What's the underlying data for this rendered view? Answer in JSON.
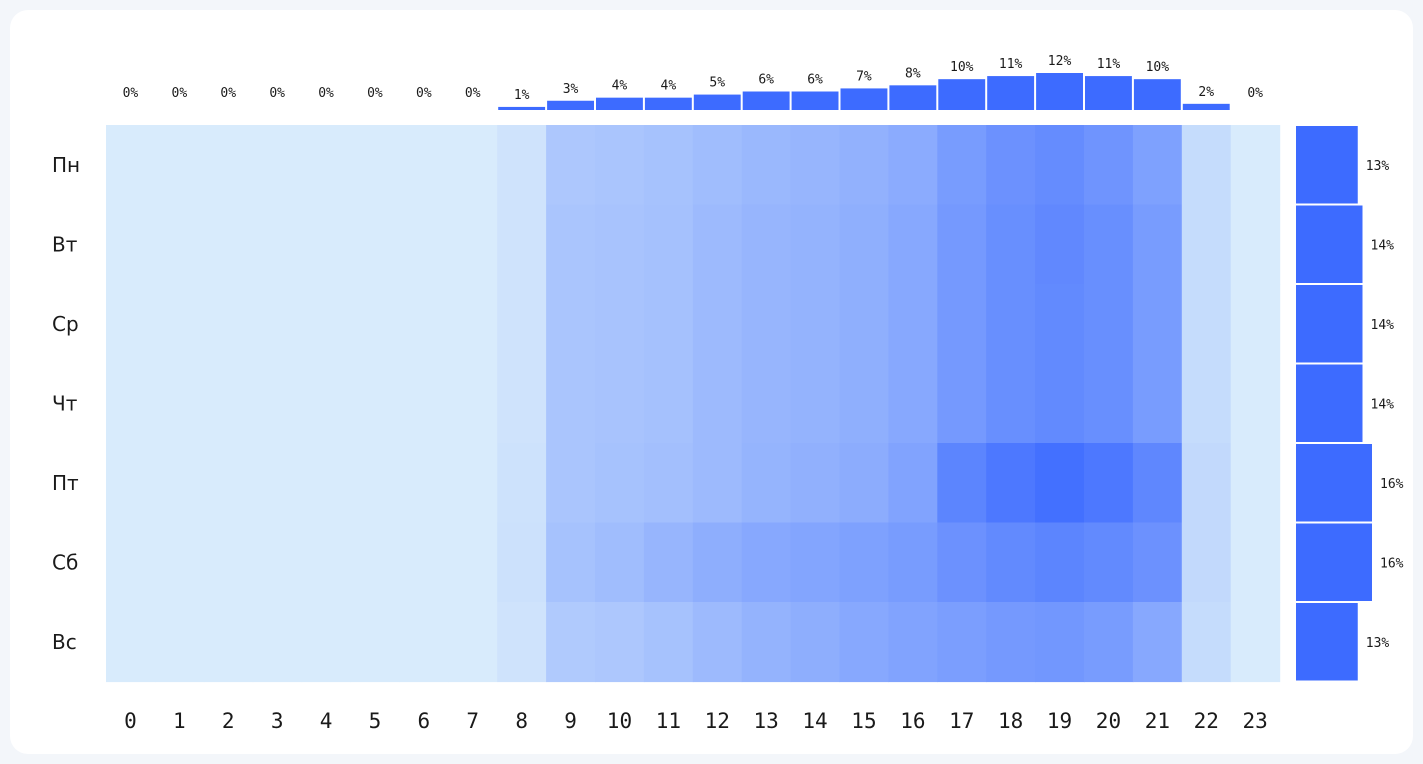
{
  "chart_data": {
    "type": "heatmap",
    "title": "",
    "xlabel": "",
    "ylabel": "",
    "hours": [
      "0",
      "1",
      "2",
      "3",
      "4",
      "5",
      "6",
      "7",
      "8",
      "9",
      "10",
      "11",
      "12",
      "13",
      "14",
      "15",
      "16",
      "17",
      "18",
      "19",
      "20",
      "21",
      "22",
      "23"
    ],
    "days": [
      "Пн",
      "Вт",
      "Ср",
      "Чт",
      "Пт",
      "Сб",
      "Вс"
    ],
    "hour_totals": [
      0,
      0,
      0,
      0,
      0,
      0,
      0,
      0,
      1,
      3,
      4,
      4,
      5,
      6,
      6,
      7,
      8,
      10,
      11,
      12,
      11,
      10,
      2,
      0
    ],
    "hour_total_labels": [
      "0%",
      "0%",
      "0%",
      "0%",
      "0%",
      "0%",
      "0%",
      "0%",
      "1%",
      "3%",
      "4%",
      "4%",
      "5%",
      "6%",
      "6%",
      "7%",
      "8%",
      "10%",
      "11%",
      "12%",
      "11%",
      "10%",
      "2%",
      "0%"
    ],
    "day_totals": [
      13,
      14,
      14,
      14,
      16,
      16,
      13
    ],
    "day_total_labels": [
      "13%",
      "14%",
      "14%",
      "14%",
      "16%",
      "16%",
      "13%"
    ],
    "intensity": [
      [
        0,
        0,
        0,
        0,
        0,
        0,
        0,
        0,
        0.06,
        0.28,
        0.3,
        0.32,
        0.36,
        0.4,
        0.42,
        0.45,
        0.5,
        0.62,
        0.7,
        0.74,
        0.68,
        0.58,
        0.12,
        0
      ],
      [
        0,
        0,
        0,
        0,
        0,
        0,
        0,
        0,
        0.06,
        0.3,
        0.31,
        0.33,
        0.38,
        0.42,
        0.44,
        0.47,
        0.52,
        0.64,
        0.72,
        0.77,
        0.72,
        0.62,
        0.12,
        0
      ],
      [
        0,
        0,
        0,
        0,
        0,
        0,
        0,
        0,
        0.06,
        0.3,
        0.31,
        0.33,
        0.38,
        0.42,
        0.44,
        0.47,
        0.52,
        0.64,
        0.72,
        0.76,
        0.72,
        0.62,
        0.12,
        0
      ],
      [
        0,
        0,
        0,
        0,
        0,
        0,
        0,
        0,
        0.06,
        0.3,
        0.31,
        0.33,
        0.38,
        0.42,
        0.44,
        0.47,
        0.52,
        0.64,
        0.72,
        0.76,
        0.72,
        0.62,
        0.12,
        0
      ],
      [
        0,
        0,
        0,
        0,
        0,
        0,
        0,
        0,
        0.07,
        0.3,
        0.32,
        0.34,
        0.38,
        0.43,
        0.46,
        0.49,
        0.56,
        0.8,
        0.9,
        0.96,
        0.9,
        0.78,
        0.14,
        0
      ],
      [
        0,
        0,
        0,
        0,
        0,
        0,
        0,
        0,
        0.08,
        0.32,
        0.36,
        0.42,
        0.48,
        0.52,
        0.55,
        0.58,
        0.62,
        0.7,
        0.76,
        0.8,
        0.76,
        0.7,
        0.14,
        0
      ],
      [
        0,
        0,
        0,
        0,
        0,
        0,
        0,
        0,
        0.06,
        0.26,
        0.28,
        0.32,
        0.38,
        0.44,
        0.48,
        0.52,
        0.56,
        0.6,
        0.64,
        0.66,
        0.62,
        0.52,
        0.12,
        0
      ]
    ],
    "colors": {
      "bar": "#3d6bff",
      "cell_min": "#d8ebfc",
      "cell_max": "#3d6bff"
    },
    "grid": false,
    "legend": "none"
  }
}
